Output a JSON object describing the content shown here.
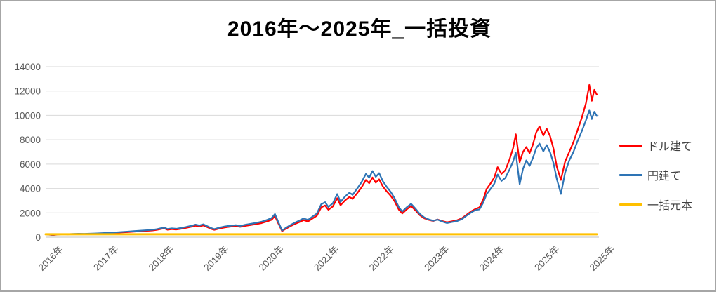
{
  "chart_data": {
    "type": "line",
    "title": "2016年～2025年_一括投資",
    "x_unit": "decimal_year",
    "x_tick_labels": [
      "2016年",
      "2017年",
      "2018年",
      "2019年",
      "2020年",
      "2021年",
      "2022年",
      "2023年",
      "2024年",
      "2025年",
      "2025年"
    ],
    "y_ticks": [
      0,
      2000,
      4000,
      6000,
      8000,
      10000,
      12000,
      14000
    ],
    "ylim": [
      0,
      14000
    ],
    "grid": true,
    "legend_position": "right",
    "principal_value": 240,
    "x": [
      2016.0,
      2016.06,
      2016.13,
      2016.22,
      2016.31,
      2016.4,
      2016.5,
      2016.6,
      2016.7,
      2016.8,
      2016.9,
      2017.0,
      2017.12,
      2017.24,
      2017.36,
      2017.48,
      2017.6,
      2017.72,
      2017.84,
      2017.94,
      2018.02,
      2018.1,
      2018.15,
      2018.21,
      2018.29,
      2018.37,
      2018.45,
      2018.55,
      2018.65,
      2018.72,
      2018.79,
      2018.86,
      2018.93,
      2019.0,
      2019.06,
      2019.15,
      2019.25,
      2019.35,
      2019.45,
      2019.53,
      2019.62,
      2019.72,
      2019.82,
      2019.92,
      2020.02,
      2020.1,
      2020.16,
      2020.22,
      2020.29,
      2020.36,
      2020.44,
      2020.52,
      2020.6,
      2020.68,
      2020.76,
      2020.84,
      2020.92,
      2021.0,
      2021.07,
      2021.13,
      2021.21,
      2021.29,
      2021.35,
      2021.43,
      2021.51,
      2021.57,
      2021.65,
      2021.73,
      2021.81,
      2021.87,
      2021.93,
      2021.99,
      2022.05,
      2022.12,
      2022.19,
      2022.26,
      2022.33,
      2022.41,
      2022.47,
      2022.55,
      2022.63,
      2022.71,
      2022.79,
      2022.87,
      2022.95,
      2023.03,
      2023.11,
      2023.19,
      2023.28,
      2023.37,
      2023.46,
      2023.55,
      2023.64,
      2023.73,
      2023.8,
      2023.87,
      2023.94,
      2024.0,
      2024.07,
      2024.14,
      2024.2,
      2024.27,
      2024.34,
      2024.41,
      2024.48,
      2024.53,
      2024.6,
      2024.66,
      2024.72,
      2024.78,
      2024.84,
      2024.9,
      2024.96,
      2025.02,
      2025.06,
      2025.1,
      2025.14,
      2025.18,
      2025.23,
      2025.28,
      2025.33,
      2025.38,
      2025.43,
      2025.48,
      2025.53,
      2025.57,
      2025.6,
      2025.63,
      2025.66
    ],
    "series": [
      {
        "name": "ドル建て",
        "color": "#FF0000",
        "values": [
          240,
          205,
          170,
          216,
          240,
          228,
          250,
          262,
          254,
          268,
          280,
          298,
          325,
          352,
          385,
          418,
          455,
          488,
          522,
          555,
          600,
          682,
          725,
          612,
          660,
          628,
          685,
          765,
          860,
          940,
          875,
          965,
          830,
          690,
          600,
          710,
          800,
          860,
          905,
          845,
          925,
          1000,
          1070,
          1160,
          1300,
          1430,
          1740,
          1150,
          497,
          700,
          900,
          1080,
          1230,
          1400,
          1290,
          1530,
          1760,
          2450,
          2600,
          2250,
          2520,
          3200,
          2620,
          3010,
          3300,
          3150,
          3600,
          4080,
          4700,
          4430,
          4900,
          4480,
          4750,
          4150,
          3750,
          3400,
          2950,
          2250,
          1950,
          2280,
          2560,
          2200,
          1800,
          1550,
          1420,
          1330,
          1450,
          1330,
          1220,
          1300,
          1380,
          1550,
          1850,
          2150,
          2320,
          2450,
          3100,
          3950,
          4400,
          4900,
          5750,
          5200,
          5500,
          6300,
          7300,
          8450,
          6150,
          7000,
          7400,
          6900,
          7600,
          8600,
          9100,
          8350,
          8900,
          8300,
          7300,
          5800,
          4700,
          6200,
          7000,
          7800,
          8800,
          9800,
          11000,
          12500,
          11200,
          12100,
          11700
        ]
      },
      {
        "name": "円建て",
        "color": "#2E74B5",
        "values": [
          240,
          216,
          190,
          230,
          254,
          244,
          268,
          283,
          276,
          292,
          306,
          326,
          356,
          386,
          422,
          458,
          500,
          536,
          573,
          610,
          660,
          747,
          795,
          672,
          724,
          690,
          752,
          840,
          943,
          1030,
          960,
          1058,
          910,
          757,
          660,
          780,
          878,
          944,
          992,
          928,
          1015,
          1098,
          1175,
          1273,
          1427,
          1570,
          1907,
          1262,
          545,
          770,
          990,
          1188,
          1353,
          1540,
          1418,
          1683,
          1936,
          2700,
          2870,
          2480,
          2780,
          3540,
          2890,
          3330,
          3650,
          3480,
          3980,
          4510,
          5190,
          4890,
          5430,
          4960,
          5260,
          4580,
          4120,
          3720,
          3210,
          2440,
          2110,
          2450,
          2740,
          2340,
          1900,
          1620,
          1460,
          1350,
          1440,
          1290,
          1160,
          1240,
          1310,
          1480,
          1780,
          2060,
          2230,
          2280,
          2840,
          3530,
          3950,
          4400,
          5150,
          4620,
          4870,
          5500,
          6200,
          6930,
          4350,
          5600,
          6300,
          5850,
          6500,
          7300,
          7680,
          7050,
          7560,
          6980,
          6100,
          4800,
          3550,
          5300,
          6300,
          7000,
          7900,
          8700,
          9600,
          10400,
          9700,
          10300,
          9950
        ]
      },
      {
        "name": "一括元本",
        "color": "#FFC000",
        "constant": 240
      }
    ]
  }
}
